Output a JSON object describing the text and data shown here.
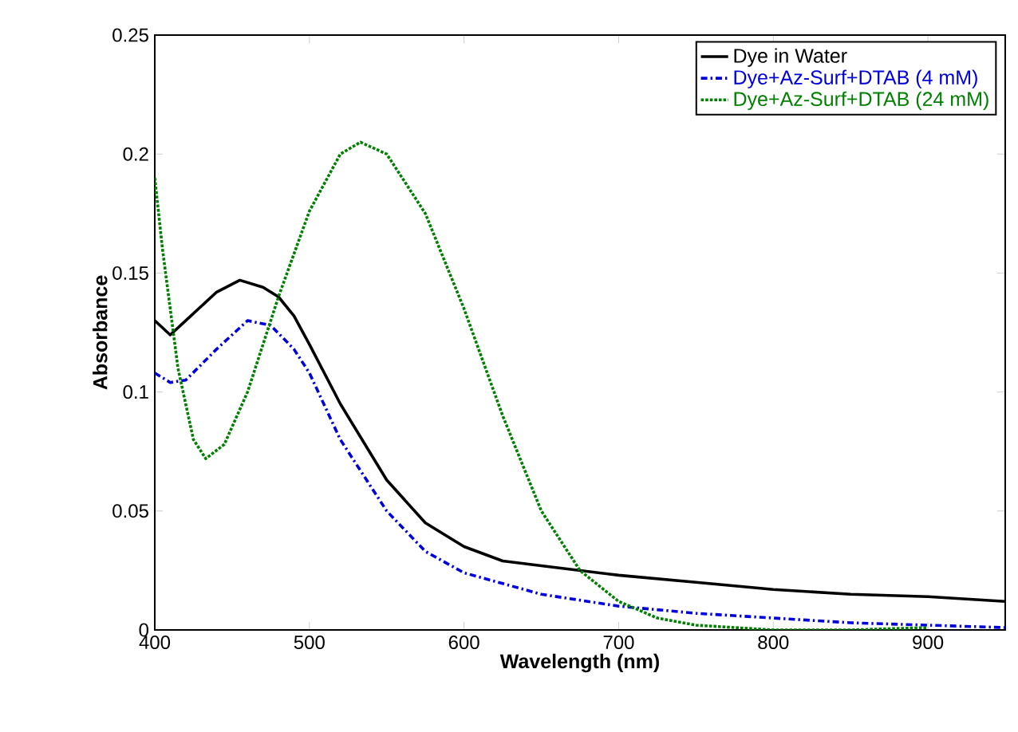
{
  "chart_data": {
    "type": "line",
    "xlabel": "Wavelength (nm)",
    "ylabel": "Absorbance",
    "xlim": [
      400,
      950
    ],
    "ylim": [
      0,
      0.25
    ],
    "xticks": [
      400,
      500,
      600,
      700,
      800,
      900
    ],
    "yticks": [
      0,
      0.05,
      0.1,
      0.15,
      0.2,
      0.25
    ],
    "legend": "top right",
    "grid": false,
    "series": [
      {
        "name": "Dye in Water",
        "color": "#000000",
        "line_style": "solid",
        "x": [
          400,
          410,
          420,
          440,
          455,
          470,
          480,
          490,
          500,
          520,
          550,
          575,
          600,
          625,
          650,
          700,
          750,
          800,
          850,
          900,
          950
        ],
        "values": [
          0.13,
          0.124,
          0.13,
          0.142,
          0.147,
          0.144,
          0.14,
          0.132,
          0.12,
          0.095,
          0.063,
          0.045,
          0.035,
          0.029,
          0.027,
          0.023,
          0.02,
          0.017,
          0.015,
          0.014,
          0.012
        ]
      },
      {
        "name": "Dye+Az-Surf+DTAB (4 mM)",
        "color": "#0000dd",
        "line_style": "dashdot",
        "x": [
          400,
          410,
          420,
          440,
          460,
          475,
          490,
          500,
          520,
          550,
          575,
          600,
          650,
          700,
          750,
          800,
          850,
          900,
          950
        ],
        "values": [
          0.108,
          0.104,
          0.105,
          0.118,
          0.13,
          0.128,
          0.118,
          0.108,
          0.08,
          0.05,
          0.033,
          0.024,
          0.015,
          0.01,
          0.007,
          0.005,
          0.003,
          0.002,
          0.001
        ]
      },
      {
        "name": "Dye+Az-Surf+DTAB (24 mM)",
        "color": "#008000",
        "line_style": "dotted",
        "x": [
          400,
          405,
          415,
          425,
          433,
          445,
          460,
          480,
          500,
          520,
          533,
          550,
          575,
          600,
          625,
          650,
          675,
          700,
          725,
          750,
          800,
          850,
          900
        ],
        "values": [
          0.19,
          0.16,
          0.11,
          0.08,
          0.072,
          0.078,
          0.1,
          0.14,
          0.176,
          0.2,
          0.205,
          0.2,
          0.175,
          0.135,
          0.09,
          0.05,
          0.025,
          0.012,
          0.005,
          0.002,
          0.0,
          0.0,
          0.001
        ]
      }
    ]
  }
}
